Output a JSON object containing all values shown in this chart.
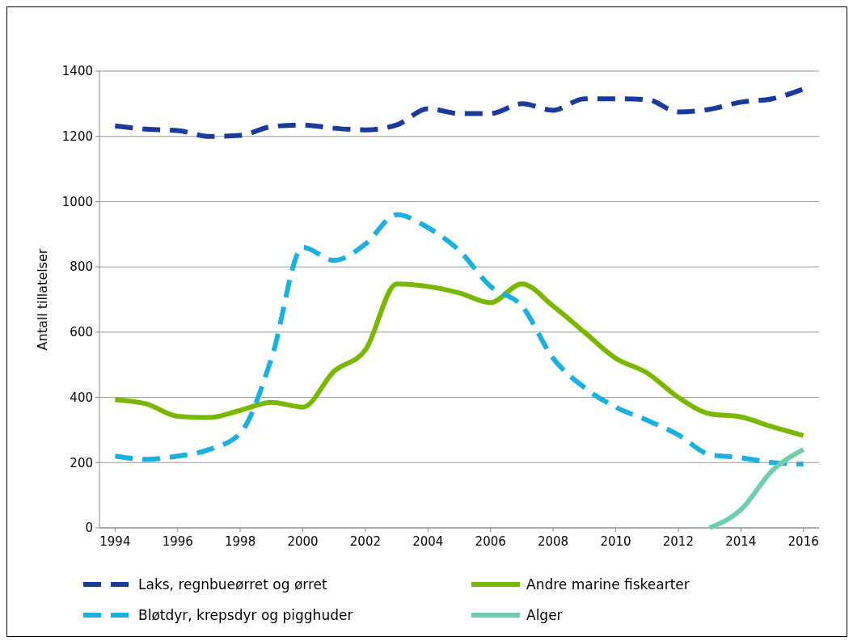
{
  "chart_data": {
    "type": "line",
    "ylabel": "Antall tillatelser",
    "x": [
      1994,
      1995,
      1996,
      1997,
      1998,
      1999,
      2000,
      2001,
      2002,
      2003,
      2004,
      2005,
      2006,
      2007,
      2008,
      2009,
      2010,
      2011,
      2012,
      2013,
      2014,
      2015,
      2016
    ],
    "series": [
      {
        "name": "Laks, regnbueørret og ørret",
        "color": "#1a3a9c",
        "line_style": "dashed",
        "values": [
          1232,
          1222,
          1218,
          1200,
          1203,
          1230,
          1235,
          1225,
          1220,
          1235,
          1285,
          1270,
          1270,
          1300,
          1280,
          1315,
          1315,
          1313,
          1275,
          1283,
          1305,
          1315,
          1345
        ]
      },
      {
        "name": "Andre marine fiskearter",
        "color": "#7ab800",
        "line_style": "solid",
        "values": [
          393,
          380,
          342,
          338,
          360,
          385,
          370,
          480,
          545,
          748,
          740,
          720,
          690,
          748,
          680,
          600,
          520,
          475,
          400,
          350,
          340,
          310,
          283
        ]
      },
      {
        "name": "Bløtdyr, krepsdyr og pigghuder",
        "color": "#1ab0e0",
        "line_style": "dashed",
        "values": [
          220,
          210,
          220,
          240,
          290,
          520,
          860,
          820,
          870,
          960,
          920,
          850,
          740,
          680,
          520,
          430,
          370,
          330,
          285,
          225,
          215,
          200,
          195
        ]
      },
      {
        "name": "Alger",
        "color": "#6fcfa8",
        "line_style": "solid",
        "x": [
          2013,
          2014,
          2015,
          2016
        ],
        "values": [
          0,
          55,
          175,
          240
        ]
      }
    ],
    "xlim": [
      1993.5,
      2016.5
    ],
    "xticks": [
      1994,
      1996,
      1998,
      2000,
      2002,
      2004,
      2006,
      2008,
      2010,
      2012,
      2014,
      2016
    ],
    "ylim": [
      0,
      1400
    ],
    "yticks": [
      0,
      200,
      400,
      600,
      800,
      1000,
      1200,
      1400
    ],
    "grid": "y",
    "legend": "bottom",
    "marker": "none"
  }
}
